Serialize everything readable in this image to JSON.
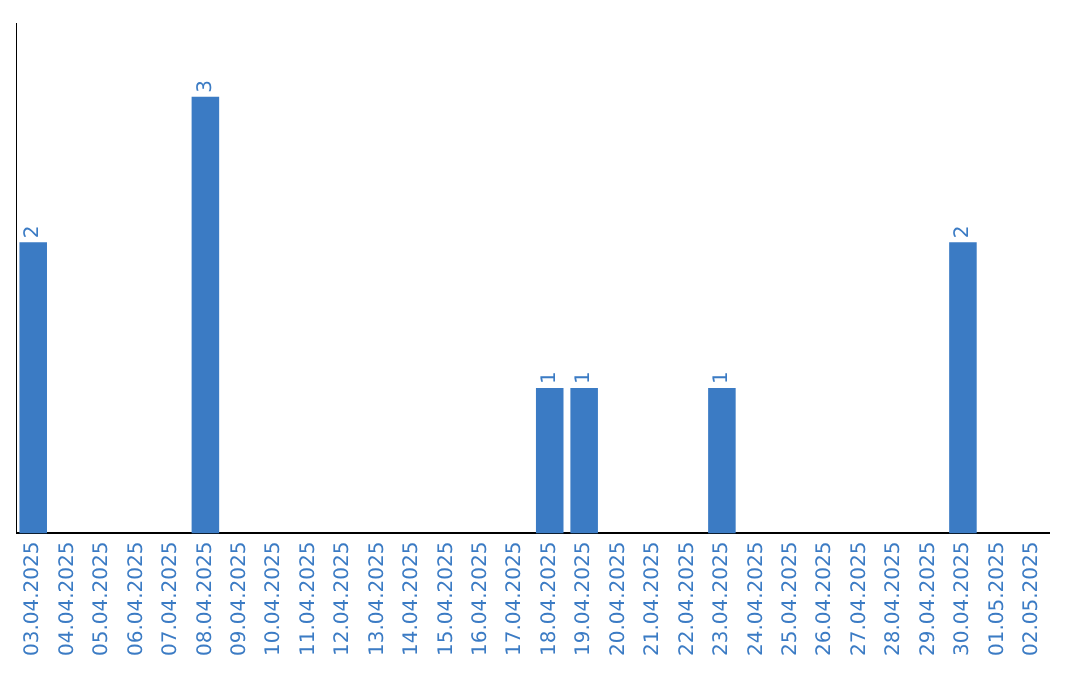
{
  "chart_data": {
    "type": "bar",
    "categories": [
      "03.04.2025",
      "04.04.2025",
      "05.04.2025",
      "06.04.2025",
      "07.04.2025",
      "08.04.2025",
      "09.04.2025",
      "10.04.2025",
      "11.04.2025",
      "12.04.2025",
      "13.04.2025",
      "14.04.2025",
      "15.04.2025",
      "16.04.2025",
      "17.04.2025",
      "18.04.2025",
      "19.04.2025",
      "20.04.2025",
      "21.04.2025",
      "22.04.2025",
      "23.04.2025",
      "24.04.2025",
      "25.04.2025",
      "26.04.2025",
      "27.04.2025",
      "28.04.2025",
      "29.04.2025",
      "30.04.2025",
      "01.05.2025",
      "02.05.2025"
    ],
    "values": [
      2,
      0,
      0,
      0,
      0,
      3,
      0,
      0,
      0,
      0,
      0,
      0,
      0,
      0,
      0,
      1,
      1,
      0,
      0,
      0,
      1,
      0,
      0,
      0,
      0,
      0,
      0,
      2,
      0,
      0
    ],
    "value_labels": [
      "2",
      null,
      null,
      null,
      null,
      "3",
      null,
      null,
      null,
      null,
      null,
      null,
      null,
      null,
      null,
      "1",
      "1",
      null,
      null,
      null,
      "1",
      null,
      null,
      null,
      null,
      null,
      null,
      "2",
      null,
      null
    ],
    "color": "#3b7bc4",
    "grid": false,
    "legend": false,
    "tick_labels": "x"
  }
}
